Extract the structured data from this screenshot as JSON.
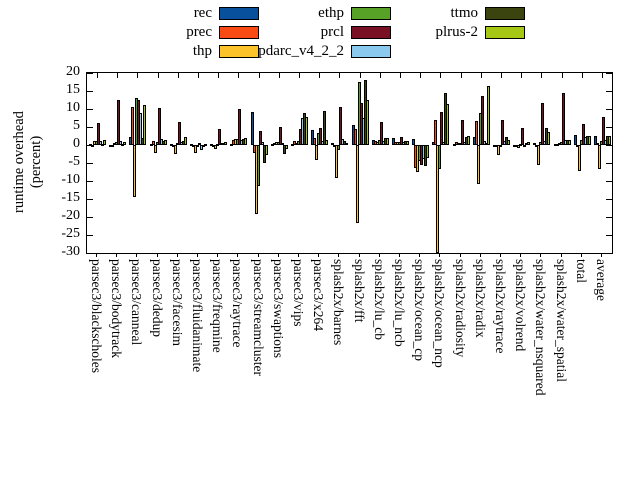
{
  "legend": {
    "columns": [
      [
        {
          "label": "rec",
          "color": "#084f9c"
        },
        {
          "label": "prec",
          "color": "#fb4b14"
        },
        {
          "label": "thp",
          "color": "#fcc32b"
        }
      ],
      [
        {
          "label": "ethp",
          "color": "#57a127"
        },
        {
          "label": "prcl",
          "color": "#7a1023"
        },
        {
          "label": "pdarc_v4_2_2",
          "color": "#8bc9ee"
        }
      ],
      [
        {
          "label": "ttmo",
          "color": "#3b430e"
        },
        {
          "label": "plrus-2",
          "color": "#a6c815"
        }
      ]
    ]
  },
  "y_axis": {
    "title_line1": "runtime overhead",
    "title_line2": "(percent)",
    "ticks": [
      20,
      15,
      10,
      5,
      0,
      -5,
      -10,
      -15,
      -20,
      -25,
      -30
    ]
  },
  "chart_data": {
    "type": "bar",
    "title": "",
    "xlabel": "",
    "ylabel": "runtime overhead (percent)",
    "ylim": [
      -30,
      20
    ],
    "grid": false,
    "legend_position": "top-center",
    "categories": [
      "parsec3/blackscholes",
      "parsec3/bodytrack",
      "parsec3/canneal",
      "parsec3/dedup",
      "parsec3/facesim",
      "parsec3/fluidanimate",
      "parsec3/freqmine",
      "parsec3/raytrace",
      "parsec3/streamcluster",
      "parsec3/swaptions",
      "parsec3/vips",
      "parsec3/x264",
      "splash2x/barnes",
      "splash2x/fft",
      "splash2x/lu_cb",
      "splash2x/lu_ncb",
      "splash2x/ocean_cp",
      "splash2x/ocean_ncp",
      "splash2x/radiosity",
      "splash2x/radix",
      "splash2x/raytrace",
      "splash2x/volrend",
      "splash2x/water_nsquared",
      "splash2x/water_spatial",
      "total",
      "average"
    ],
    "series": [
      {
        "name": "rec",
        "color": "#084f9c",
        "values": [
          0.3,
          -0.3,
          2.2,
          0.4,
          0.3,
          0.3,
          0.3,
          0.2,
          9.2,
          0.3,
          0.4,
          4.1,
          0.5,
          5.6,
          1.3,
          2.0,
          1.8,
          0.8,
          0.4,
          2.1,
          -0.3,
          -0.4,
          0.5,
          0.3,
          2.9,
          2.4
        ]
      },
      {
        "name": "prec",
        "color": "#fb4b14",
        "values": [
          -0.5,
          -0.5,
          10.6,
          1.0,
          -0.4,
          -0.3,
          -0.6,
          1.4,
          -2.3,
          0.6,
          1.0,
          2.0,
          -0.4,
          4.4,
          1.0,
          0.8,
          -6.3,
          6.9,
          0.8,
          6.7,
          -0.5,
          -0.3,
          -0.4,
          0.4,
          -0.5,
          0.5
        ]
      },
      {
        "name": "thp",
        "color": "#fcc32b",
        "values": [
          1.0,
          0.6,
          -14.5,
          -2.2,
          -2.6,
          -2.3,
          -1.0,
          1.7,
          -19.3,
          0.8,
          0.6,
          -4.3,
          -9.1,
          -21.6,
          0.8,
          0.7,
          -7.4,
          -31.0,
          0.5,
          -10.9,
          -2.8,
          -0.9,
          -5.6,
          0.5,
          -7.2,
          -6.8
        ]
      },
      {
        "name": "ethp",
        "color": "#57a127",
        "values": [
          1.2,
          0.8,
          13.0,
          0.8,
          0.5,
          -0.4,
          0.4,
          1.7,
          -11.4,
          0.7,
          1.2,
          3.2,
          -1.5,
          17.4,
          1.5,
          0.8,
          -4.4,
          -6.8,
          0.6,
          8.9,
          -0.5,
          0.4,
          0.8,
          0.8,
          1.4,
          1.0
        ]
      },
      {
        "name": "prcl",
        "color": "#7a1023",
        "values": [
          6.2,
          12.4,
          12.5,
          10.3,
          6.4,
          0.6,
          4.5,
          9.9,
          3.8,
          5.1,
          4.4,
          4.6,
          10.6,
          11.8,
          6.5,
          2.3,
          -5.6,
          9.3,
          7.0,
          13.5,
          6.9,
          4.6,
          11.7,
          14.4,
          5.8,
          7.8
        ]
      },
      {
        "name": "pdarc_v4_2_2",
        "color": "#8bc9ee",
        "values": [
          1.2,
          1.0,
          9.0,
          1.8,
          0.8,
          -1.5,
          0.6,
          1.5,
          0.8,
          0.5,
          7.4,
          1.2,
          1.8,
          7.6,
          1.2,
          0.7,
          -4.0,
          0.8,
          0.8,
          1.2,
          1.1,
          -0.4,
          1.0,
          1.5,
          2.1,
          1.5
        ]
      },
      {
        "name": "ttmo",
        "color": "#3b430e",
        "values": [
          0.4,
          0.3,
          2.0,
          1.2,
          1.0,
          -0.5,
          0.5,
          1.8,
          -5.0,
          -2.6,
          8.8,
          9.4,
          1.0,
          18.0,
          2.0,
          1.2,
          -5.8,
          14.5,
          2.3,
          0.6,
          2.3,
          0.5,
          4.8,
          1.3,
          2.5,
          2.4
        ]
      },
      {
        "name": "plrus-2",
        "color": "#a6c815",
        "values": [
          1.4,
          0.8,
          11.0,
          1.5,
          2.2,
          0.4,
          0.8,
          2.0,
          -2.8,
          -1.0,
          7.8,
          1.5,
          0.6,
          12.4,
          2.0,
          1.0,
          -3.5,
          11.5,
          2.6,
          16.5,
          1.3,
          0.9,
          3.6,
          1.5,
          2.6,
          2.5
        ]
      }
    ]
  }
}
